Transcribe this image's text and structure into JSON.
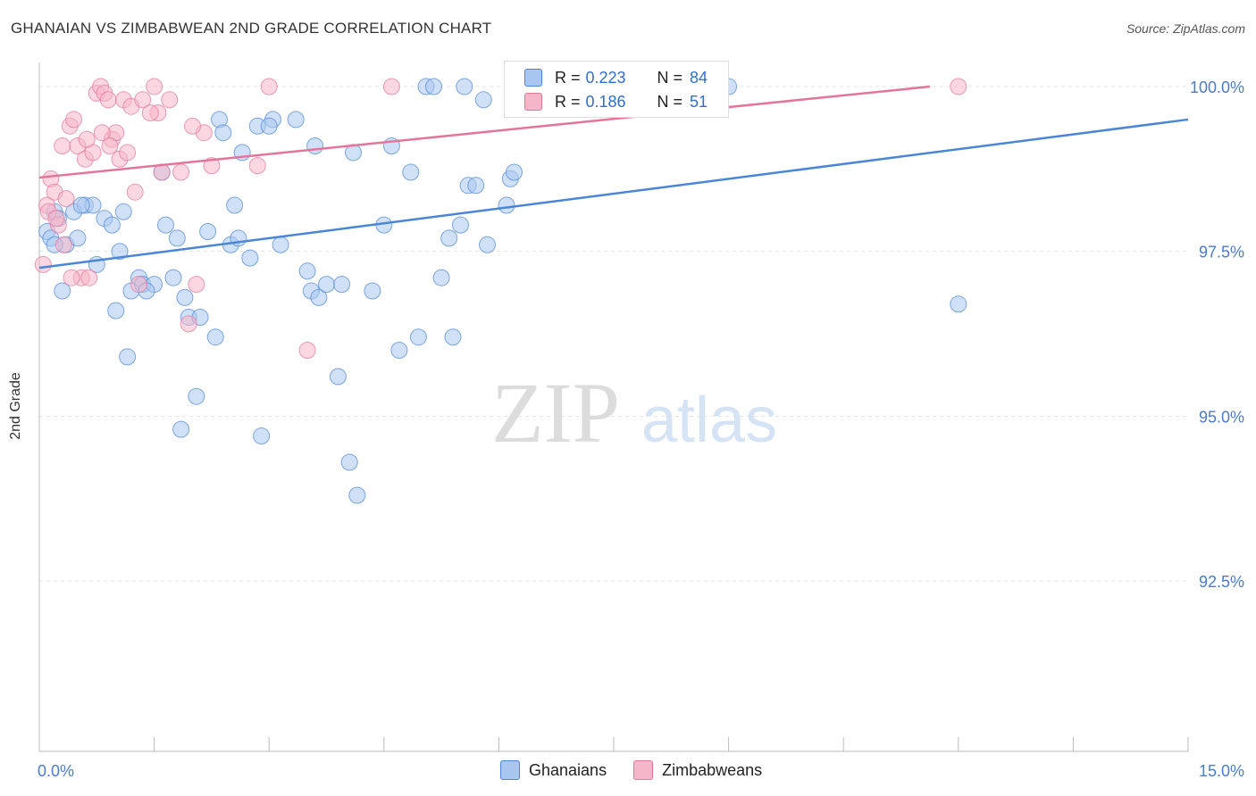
{
  "header": {
    "title": "GHANAIAN VS ZIMBABWEAN 2ND GRADE CORRELATION CHART",
    "source": "Source: ZipAtlas.com"
  },
  "watermark": {
    "zip": "ZIP",
    "atlas": "atlas"
  },
  "legend": {
    "rows": [
      {
        "r_label": "R = ",
        "r_value": "0.223",
        "n_label": "N = ",
        "n_value": "84",
        "color": "#a9c6f0"
      },
      {
        "r_label": "R = ",
        "r_value": "0.186",
        "n_label": "N = ",
        "n_value": "51",
        "color": "#f6b6c9"
      }
    ],
    "series_labels": [
      "Ghanaians",
      "Zimbabweans"
    ]
  },
  "chart_data": {
    "type": "scatter",
    "title": "GHANAIAN VS ZIMBABWEAN 2ND GRADE CORRELATION CHART",
    "xlabel": "",
    "ylabel": "2nd Grade",
    "xlim": [
      0,
      15
    ],
    "ylim": [
      90.4,
      100.5
    ],
    "x_tick_labels": [
      "0.0%",
      "15.0%"
    ],
    "y_ticks": [
      100.0,
      97.5,
      95.0,
      92.5
    ],
    "y_tick_labels": [
      "100.0%",
      "97.5%",
      "95.0%",
      "92.5%"
    ],
    "grid": true,
    "legend_position": "top-center",
    "series": [
      {
        "name": "Ghanaians",
        "color": "#4a86d8",
        "fill": "#a9c6f0",
        "trend": {
          "x": [
            0,
            15
          ],
          "y": [
            97.25,
            99.5
          ]
        },
        "points": [
          [
            0.1,
            97.8
          ],
          [
            0.15,
            97.7
          ],
          [
            0.2,
            98.1
          ],
          [
            0.25,
            98.0
          ],
          [
            0.3,
            96.9
          ],
          [
            0.35,
            97.6
          ],
          [
            0.45,
            98.1
          ],
          [
            0.5,
            97.7
          ],
          [
            0.6,
            98.2
          ],
          [
            0.7,
            98.2
          ],
          [
            0.75,
            97.3
          ],
          [
            0.85,
            98.0
          ],
          [
            0.95,
            97.9
          ],
          [
            1.05,
            97.5
          ],
          [
            1.1,
            98.1
          ],
          [
            1.2,
            96.9
          ],
          [
            1.3,
            97.1
          ],
          [
            1.35,
            97.0
          ],
          [
            1.5,
            97.0
          ],
          [
            1.6,
            98.7
          ],
          [
            1.65,
            97.9
          ],
          [
            1.75,
            97.1
          ],
          [
            1.8,
            97.7
          ],
          [
            1.9,
            96.8
          ],
          [
            1.95,
            96.5
          ],
          [
            2.05,
            95.3
          ],
          [
            2.1,
            96.5
          ],
          [
            2.2,
            97.8
          ],
          [
            2.3,
            96.2
          ],
          [
            2.35,
            99.5
          ],
          [
            2.4,
            99.3
          ],
          [
            2.5,
            97.6
          ],
          [
            2.55,
            98.2
          ],
          [
            2.6,
            97.7
          ],
          [
            2.65,
            99.0
          ],
          [
            2.75,
            97.4
          ],
          [
            2.85,
            99.4
          ],
          [
            3.05,
            99.5
          ],
          [
            3.15,
            97.6
          ],
          [
            3.35,
            99.5
          ],
          [
            3.5,
            97.2
          ],
          [
            3.55,
            96.9
          ],
          [
            3.6,
            99.1
          ],
          [
            3.65,
            96.8
          ],
          [
            3.75,
            97.0
          ],
          [
            3.9,
            95.6
          ],
          [
            3.95,
            97.0
          ],
          [
            4.05,
            94.3
          ],
          [
            4.1,
            99.0
          ],
          [
            4.15,
            93.8
          ],
          [
            4.35,
            96.9
          ],
          [
            4.5,
            97.9
          ],
          [
            4.6,
            99.1
          ],
          [
            4.7,
            96.0
          ],
          [
            4.85,
            98.7
          ],
          [
            4.95,
            96.2
          ],
          [
            5.05,
            100.0
          ],
          [
            5.15,
            100.0
          ],
          [
            5.25,
            97.1
          ],
          [
            5.35,
            97.7
          ],
          [
            5.4,
            96.2
          ],
          [
            5.5,
            97.9
          ],
          [
            5.55,
            100.0
          ],
          [
            5.6,
            98.5
          ],
          [
            5.7,
            98.5
          ],
          [
            5.8,
            99.8
          ],
          [
            5.85,
            97.6
          ],
          [
            6.1,
            98.2
          ],
          [
            6.15,
            98.6
          ],
          [
            6.2,
            98.7
          ],
          [
            7.1,
            100.0
          ],
          [
            7.2,
            100.0
          ],
          [
            7.5,
            100.0
          ],
          [
            8.5,
            100.0
          ],
          [
            9.0,
            100.0
          ],
          [
            12.0,
            96.7
          ],
          [
            0.2,
            97.6
          ],
          [
            0.55,
            98.2
          ],
          [
            1.0,
            96.6
          ],
          [
            1.4,
            96.9
          ],
          [
            2.9,
            94.7
          ],
          [
            3.0,
            99.4
          ],
          [
            1.15,
            95.9
          ],
          [
            1.85,
            94.8
          ]
        ]
      },
      {
        "name": "Zimbabweans",
        "color": "#e5749a",
        "fill": "#f6b6c9",
        "trend": {
          "x": [
            0,
            15
          ],
          "y": [
            98.62,
            100.4
          ]
        },
        "points": [
          [
            0.05,
            97.3
          ],
          [
            0.1,
            98.2
          ],
          [
            0.15,
            98.6
          ],
          [
            0.2,
            98.4
          ],
          [
            0.25,
            97.9
          ],
          [
            0.3,
            99.1
          ],
          [
            0.35,
            98.3
          ],
          [
            0.4,
            99.4
          ],
          [
            0.45,
            99.5
          ],
          [
            0.5,
            99.1
          ],
          [
            0.55,
            97.1
          ],
          [
            0.6,
            98.9
          ],
          [
            0.65,
            97.1
          ],
          [
            0.7,
            99.0
          ],
          [
            0.75,
            99.9
          ],
          [
            0.8,
            100.0
          ],
          [
            0.85,
            99.9
          ],
          [
            0.9,
            99.8
          ],
          [
            0.95,
            99.2
          ],
          [
            1.0,
            99.3
          ],
          [
            1.05,
            98.9
          ],
          [
            1.1,
            99.8
          ],
          [
            1.15,
            99.0
          ],
          [
            1.2,
            99.7
          ],
          [
            1.25,
            98.4
          ],
          [
            1.3,
            97.0
          ],
          [
            1.5,
            100.0
          ],
          [
            1.55,
            99.6
          ],
          [
            1.6,
            98.7
          ],
          [
            1.7,
            99.8
          ],
          [
            1.85,
            98.7
          ],
          [
            1.95,
            96.4
          ],
          [
            2.05,
            97.0
          ],
          [
            2.15,
            99.3
          ],
          [
            2.25,
            98.8
          ],
          [
            2.85,
            98.8
          ],
          [
            3.0,
            100.0
          ],
          [
            3.5,
            96.0
          ],
          [
            4.6,
            100.0
          ],
          [
            6.95,
            100.0
          ],
          [
            12.0,
            100.0
          ],
          [
            0.12,
            98.1
          ],
          [
            0.22,
            98.0
          ],
          [
            0.32,
            97.6
          ],
          [
            0.42,
            97.1
          ],
          [
            0.62,
            99.2
          ],
          [
            0.82,
            99.3
          ],
          [
            0.92,
            99.1
          ],
          [
            1.35,
            99.8
          ],
          [
            1.45,
            99.6
          ],
          [
            2.0,
            99.4
          ]
        ]
      }
    ]
  }
}
